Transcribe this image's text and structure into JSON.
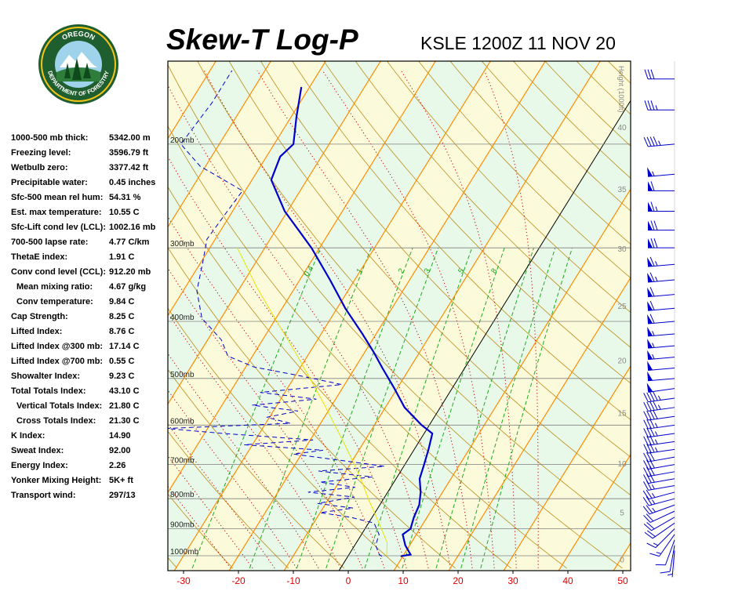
{
  "header": {
    "title": "Skew-T Log-P",
    "station_time": "KSLE 1200Z 11 NOV 20"
  },
  "logo": {
    "top_text": "OREGON",
    "bottom_text": "DEPARTMENT OF FORESTRY"
  },
  "indices": [
    {
      "label": "1000-500 mb thick:",
      "value": "5342.00 m",
      "indent": false
    },
    {
      "label": "Freezing level:",
      "value": "3596.79 ft",
      "indent": false
    },
    {
      "label": "Wetbulb zero:",
      "value": "3377.42 ft",
      "indent": false
    },
    {
      "label": "Precipitable water:",
      "value": "0.45 inches",
      "indent": false
    },
    {
      "label": "Sfc-500 mean rel hum:",
      "value": "54.31 %",
      "indent": false
    },
    {
      "label": "Est. max temperature:",
      "value": "10.55 C",
      "indent": false
    },
    {
      "label": "Sfc-Lift cond lev (LCL):",
      "value": "1002.16 mb",
      "indent": false
    },
    {
      "label": "700-500 lapse rate:",
      "value": "4.77 C/km",
      "indent": false
    },
    {
      "label": "ThetaE index:",
      "value": "1.91 C",
      "indent": false
    },
    {
      "label": "Conv cond level (CCL):",
      "value": "912.20 mb",
      "indent": false
    },
    {
      "label": "Mean mixing ratio:",
      "value": "4.67 g/kg",
      "indent": true
    },
    {
      "label": "Conv temperature:",
      "value": "9.84 C",
      "indent": true
    },
    {
      "label": "Cap Strength:",
      "value": "8.25 C",
      "indent": false
    },
    {
      "label": "Lifted Index:",
      "value": "8.76 C",
      "indent": false
    },
    {
      "label": "Lifted Index @300 mb:",
      "value": "17.14 C",
      "indent": false
    },
    {
      "label": "Lifted Index @700 mb:",
      "value": "0.55 C",
      "indent": false
    },
    {
      "label": "Showalter Index:",
      "value": "9.23 C",
      "indent": false
    },
    {
      "label": "Total Totals Index:",
      "value": "43.10 C",
      "indent": false
    },
    {
      "label": "Vertical Totals Index:",
      "value": "21.80 C",
      "indent": true
    },
    {
      "label": "Cross Totals Index:",
      "value": "21.30 C",
      "indent": true
    },
    {
      "label": "K Index:",
      "value": "14.90",
      "indent": false
    },
    {
      "label": "Sweat Index:",
      "value": "92.00",
      "indent": false
    },
    {
      "label": "Energy Index:",
      "value": "2.26",
      "indent": false
    },
    {
      "label": "Yonker Mixing Height:",
      "value": "5K+ ft",
      "indent": false
    },
    {
      "label": "Transport wind:",
      "value": "297/13",
      "indent": false
    }
  ],
  "chart_data": {
    "type": "line",
    "x_axis": {
      "min": -30,
      "max": 50,
      "ticks": [
        -30,
        -20,
        -10,
        0,
        10,
        20,
        30,
        40,
        50
      ],
      "color": "#dd0000"
    },
    "pressure_levels": [
      {
        "p": 1000,
        "label": "1000mb"
      },
      {
        "p": 900,
        "label": "900mb"
      },
      {
        "p": 800,
        "label": "800mb"
      },
      {
        "p": 700,
        "label": "700mb"
      },
      {
        "p": 600,
        "label": "600mb"
      },
      {
        "p": 500,
        "label": "500mb"
      },
      {
        "p": 400,
        "label": "400mb"
      },
      {
        "p": 300,
        "label": "300mb"
      },
      {
        "p": 200,
        "label": "200mb"
      }
    ],
    "height_axis": {
      "label": "Height (1000ft)",
      "ticks": [
        0,
        5,
        10,
        15,
        20,
        25,
        30,
        35,
        40,
        45,
        50
      ]
    },
    "mixing_ratio_labels": [
      "0.4",
      "1",
      "2",
      "3",
      "5",
      "8"
    ],
    "series": [
      {
        "role": "temperature",
        "color": "#0000cc",
        "points": [
          {
            "p": 1002,
            "t": 9.6
          },
          {
            "p": 995,
            "t": 11.2
          },
          {
            "p": 960,
            "t": 9.2
          },
          {
            "p": 920,
            "t": 7.5
          },
          {
            "p": 900,
            "t": 8.3
          },
          {
            "p": 860,
            "t": 7.6
          },
          {
            "p": 820,
            "t": 7.2
          },
          {
            "p": 780,
            "t": 6.0
          },
          {
            "p": 740,
            "t": 4.3
          },
          {
            "p": 700,
            "t": 3.5
          },
          {
            "p": 660,
            "t": 2.6
          },
          {
            "p": 620,
            "t": 1.5
          },
          {
            "p": 600,
            "t": -1.4
          },
          {
            "p": 560,
            "t": -6.5
          },
          {
            "p": 520,
            "t": -10.5
          },
          {
            "p": 480,
            "t": -15.0
          },
          {
            "p": 450,
            "t": -18.5
          },
          {
            "p": 420,
            "t": -22.5
          },
          {
            "p": 380,
            "t": -28.5
          },
          {
            "p": 340,
            "t": -34.5
          },
          {
            "p": 300,
            "t": -41.5
          },
          {
            "p": 260,
            "t": -50.5
          },
          {
            "p": 230,
            "t": -56.5
          },
          {
            "p": 210,
            "t": -57.5
          },
          {
            "p": 200,
            "t": -56.5
          },
          {
            "p": 180,
            "t": -59.0
          },
          {
            "p": 160,
            "t": -61.5
          }
        ]
      },
      {
        "role": "dewpoint",
        "color": "#0000cc",
        "points": [
          {
            "p": 1002,
            "t": 6.2
          },
          {
            "p": 995,
            "t": 5.5
          },
          {
            "p": 960,
            "t": 3.8
          },
          {
            "p": 920,
            "t": 3.2
          },
          {
            "p": 880,
            "t": 1.0
          },
          {
            "p": 860,
            "t": -4.0
          },
          {
            "p": 845,
            "t": -10.0
          },
          {
            "p": 830,
            "t": -4.5
          },
          {
            "p": 815,
            "t": -11.5
          },
          {
            "p": 795,
            "t": -5.5
          },
          {
            "p": 780,
            "t": -14.5
          },
          {
            "p": 765,
            "t": -6.5
          },
          {
            "p": 750,
            "t": -13.5
          },
          {
            "p": 735,
            "t": -4.5
          },
          {
            "p": 718,
            "t": -15.0
          },
          {
            "p": 705,
            "t": -3.5
          },
          {
            "p": 690,
            "t": -11.5
          },
          {
            "p": 672,
            "t": -21.5
          },
          {
            "p": 662,
            "t": -16.5
          },
          {
            "p": 648,
            "t": -31.5
          },
          {
            "p": 636,
            "t": -19.5
          },
          {
            "p": 620,
            "t": -36.5
          },
          {
            "p": 608,
            "t": -47.5
          },
          {
            "p": 596,
            "t": -25.5
          },
          {
            "p": 582,
            "t": -30.5
          },
          {
            "p": 568,
            "t": -25.5
          },
          {
            "p": 555,
            "t": -34.5
          },
          {
            "p": 542,
            "t": -23.5
          },
          {
            "p": 528,
            "t": -34.5
          },
          {
            "p": 512,
            "t": -20.5
          },
          {
            "p": 496,
            "t": -28.5
          },
          {
            "p": 478,
            "t": -38.5
          },
          {
            "p": 458,
            "t": -44.5
          },
          {
            "p": 430,
            "t": -47.5
          },
          {
            "p": 395,
            "t": -53.5
          },
          {
            "p": 355,
            "t": -57.5
          },
          {
            "p": 320,
            "t": -59.5
          },
          {
            "p": 290,
            "t": -61.5
          },
          {
            "p": 262,
            "t": -61.0
          },
          {
            "p": 240,
            "t": -60.5
          },
          {
            "p": 218,
            "t": -71.0
          },
          {
            "p": 200,
            "t": -77.0
          },
          {
            "p": 170,
            "t": -76.0
          },
          {
            "p": 150,
            "t": -76.0
          }
        ]
      },
      {
        "role": "parcel",
        "color": "#e6e600",
        "points": [
          {
            "p": 1000,
            "t": 7.0
          },
          {
            "p": 950,
            "t": 5.6
          },
          {
            "p": 900,
            "t": 3.0
          },
          {
            "p": 850,
            "t": 0.2
          },
          {
            "p": 800,
            "t": -2.8
          },
          {
            "p": 750,
            "t": -5.8
          },
          {
            "p": 700,
            "t": -9.2
          },
          {
            "p": 650,
            "t": -13.0
          },
          {
            "p": 600,
            "t": -17.2
          },
          {
            "p": 550,
            "t": -21.8
          },
          {
            "p": 500,
            "t": -27.0
          },
          {
            "p": 450,
            "t": -32.8
          },
          {
            "p": 400,
            "t": -39.5
          },
          {
            "p": 350,
            "t": -47.0
          },
          {
            "p": 300,
            "t": -55.0
          }
        ]
      }
    ],
    "wind_barbs": [
      {
        "p": 980,
        "dir": 185,
        "spd": 5
      },
      {
        "p": 960,
        "dir": 190,
        "spd": 10
      },
      {
        "p": 940,
        "dir": 200,
        "spd": 10
      },
      {
        "p": 920,
        "dir": 215,
        "spd": 15
      },
      {
        "p": 900,
        "dir": 225,
        "spd": 15
      },
      {
        "p": 880,
        "dir": 235,
        "spd": 20
      },
      {
        "p": 860,
        "dir": 240,
        "spd": 20
      },
      {
        "p": 840,
        "dir": 245,
        "spd": 20
      },
      {
        "p": 820,
        "dir": 250,
        "spd": 25
      },
      {
        "p": 800,
        "dir": 255,
        "spd": 25
      },
      {
        "p": 780,
        "dir": 255,
        "spd": 25
      },
      {
        "p": 760,
        "dir": 260,
        "spd": 25
      },
      {
        "p": 740,
        "dir": 260,
        "spd": 30
      },
      {
        "p": 720,
        "dir": 260,
        "spd": 30
      },
      {
        "p": 700,
        "dir": 260,
        "spd": 30
      },
      {
        "p": 680,
        "dir": 260,
        "spd": 30
      },
      {
        "p": 660,
        "dir": 262,
        "spd": 35
      },
      {
        "p": 640,
        "dir": 262,
        "spd": 35
      },
      {
        "p": 620,
        "dir": 262,
        "spd": 35
      },
      {
        "p": 600,
        "dir": 262,
        "spd": 35
      },
      {
        "p": 580,
        "dir": 262,
        "spd": 40
      },
      {
        "p": 560,
        "dir": 262,
        "spd": 45
      },
      {
        "p": 540,
        "dir": 262,
        "spd": 45
      },
      {
        "p": 520,
        "dir": 262,
        "spd": 50
      },
      {
        "p": 500,
        "dir": 265,
        "spd": 50
      },
      {
        "p": 480,
        "dir": 265,
        "spd": 50
      },
      {
        "p": 460,
        "dir": 265,
        "spd": 55
      },
      {
        "p": 440,
        "dir": 265,
        "spd": 55
      },
      {
        "p": 420,
        "dir": 265,
        "spd": 55
      },
      {
        "p": 400,
        "dir": 265,
        "spd": 60
      },
      {
        "p": 380,
        "dir": 265,
        "spd": 60
      },
      {
        "p": 360,
        "dir": 265,
        "spd": 60
      },
      {
        "p": 340,
        "dir": 265,
        "spd": 65
      },
      {
        "p": 320,
        "dir": 265,
        "spd": 65
      },
      {
        "p": 300,
        "dir": 270,
        "spd": 70
      },
      {
        "p": 280,
        "dir": 270,
        "spd": 70
      },
      {
        "p": 260,
        "dir": 270,
        "spd": 65
      },
      {
        "p": 240,
        "dir": 270,
        "spd": 60
      },
      {
        "p": 225,
        "dir": 265,
        "spd": 55
      },
      {
        "p": 200,
        "dir": 265,
        "spd": 45
      },
      {
        "p": 175,
        "dir": 270,
        "spd": 35
      },
      {
        "p": 155,
        "dir": 270,
        "spd": 30
      }
    ],
    "colors": {
      "isotherm": "#ff8c00",
      "dry_adiabat": "#b8860b",
      "moist_adiabat": "#cc0000",
      "mixing_ratio": "#22aa22",
      "isobar": "#808080",
      "background_a": "#e9f9e9",
      "background_b": "#fbfbdc"
    }
  }
}
